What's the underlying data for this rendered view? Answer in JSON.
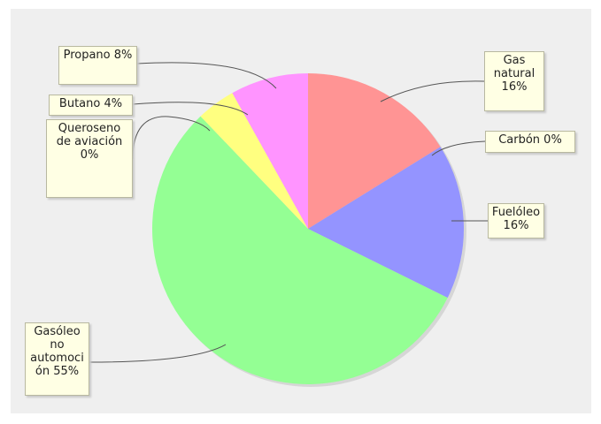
{
  "chart_data": {
    "type": "pie",
    "categories": [
      "Gas natural",
      "Carbón",
      "Fuelóleo",
      "Gasóleo no automoción",
      "Queroseno de aviación",
      "Butano",
      "Propano"
    ],
    "values": [
      16,
      0,
      16,
      55,
      0,
      4,
      8
    ],
    "value_labels": [
      "16%",
      "0%",
      "16%",
      "55%",
      "0%",
      "4%",
      "8%"
    ],
    "colors": [
      "#ff9494",
      "#ffcc66",
      "#9494ff",
      "#94ff94",
      "#80d0ff",
      "#ffff80",
      "#ff94ff"
    ]
  }
}
